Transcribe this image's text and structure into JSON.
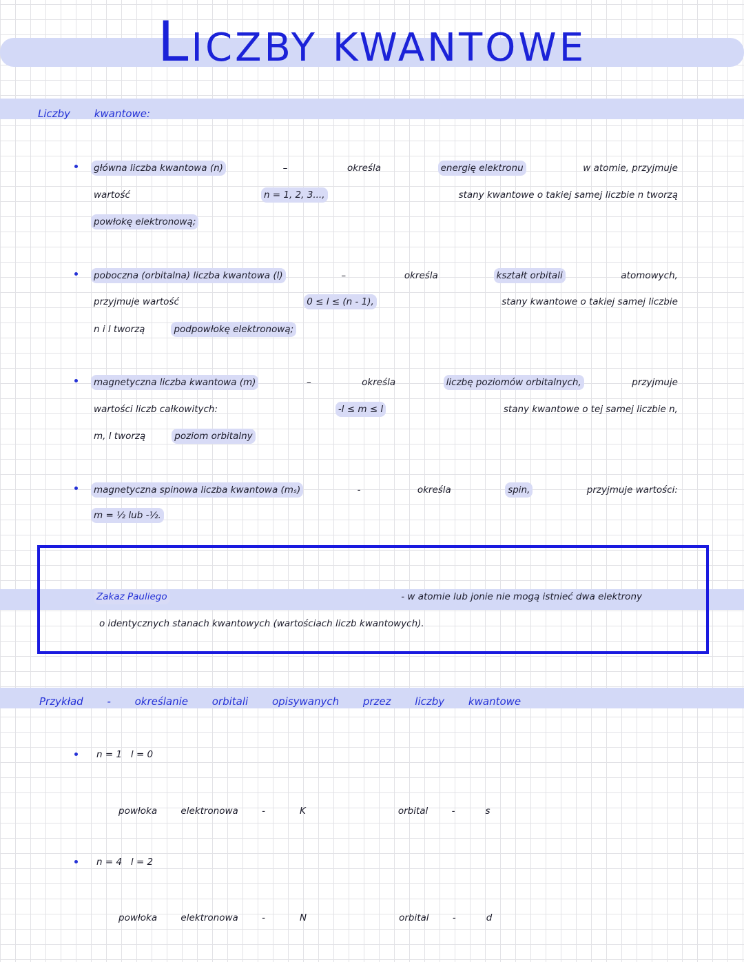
{
  "title": {
    "first_letter": "L",
    "rest": "ICZBY KWANTOWE"
  },
  "section1_heading": "Liczby kwantowe:",
  "bullets": [
    {
      "lines": [
        [
          {
            "t": "główna liczba kwantowa (n)",
            "hl": true
          },
          {
            "t": "–"
          },
          {
            "t": "określa"
          },
          {
            "t": "energię elektronu",
            "hl": true
          },
          {
            "t": "w atomie, przyjmuje"
          }
        ],
        [
          {
            "t": "wartość"
          },
          {
            "t": "n = 1, 2, 3...,",
            "hl": true
          },
          {
            "t": "stany kwantowe o takiej samej liczbie n tworzą"
          }
        ],
        [
          {
            "t": "powłokę elektronową;",
            "hl": true
          }
        ]
      ]
    },
    {
      "lines": [
        [
          {
            "t": "poboczna (orbitalna) liczba kwantowa (l)",
            "hl": true
          },
          {
            "t": "–"
          },
          {
            "t": "określa"
          },
          {
            "t": "kształt orbitali",
            "hl": true
          },
          {
            "t": "atomowych,"
          }
        ],
        [
          {
            "t": "przyjmuje wartość"
          },
          {
            "t": "0 ≤ l ≤ (n - 1),",
            "hl": true
          },
          {
            "t": "stany kwantowe o takiej samej liczbie"
          }
        ],
        [
          {
            "t": "n i l tworzą"
          },
          {
            "t": "podpowłokę elektronową;",
            "hl": true
          }
        ]
      ]
    },
    {
      "lines": [
        [
          {
            "t": "magnetyczna liczba kwantowa (m)",
            "hl": true
          },
          {
            "t": "–"
          },
          {
            "t": "określa"
          },
          {
            "t": "liczbę poziomów orbitalnych,",
            "hl": true
          },
          {
            "t": "przyjmuje"
          }
        ],
        [
          {
            "t": "wartości liczb całkowitych:"
          },
          {
            "t": "-l ≤ m ≤ l",
            "hl": true
          },
          {
            "t": "stany kwantowe o tej samej liczbie n,"
          }
        ],
        [
          {
            "t": "m, l tworzą"
          },
          {
            "t": "poziom orbitalny",
            "hl": true
          }
        ]
      ]
    },
    {
      "lines": [
        [
          {
            "t": "magnetyczna spinowa liczba kwantowa (mₛ)",
            "hl": true
          },
          {
            "t": "-"
          },
          {
            "t": "określa"
          },
          {
            "t": "spin,",
            "hl": true
          },
          {
            "t": "przyjmuje wartości:"
          }
        ],
        [
          {
            "t": "m = ½ lub -½.",
            "hl": true
          }
        ]
      ]
    }
  ],
  "pauli_box": {
    "lines": [
      [
        {
          "t": "Zakaz Pauliego",
          "hl": true,
          "blue": true
        },
        {
          "t": "- w atomie lub jonie nie mogą istnieć dwa elektrony"
        }
      ],
      [
        {
          "t": "o identycznych stanach kwantowych (wartościach liczb kwantowych)."
        }
      ]
    ]
  },
  "section2_heading": {
    "main": "Przykład",
    "rest": "- określanie orbitali opisywanych przez liczby kwantowe"
  },
  "examples": [
    {
      "quantum": "n = 1   l = 0",
      "shell_label": "powłoka elektronowa -",
      "shell": "K",
      "orbital_label": "orbital -",
      "orbital": "s"
    },
    {
      "quantum": "n = 4   l = 2",
      "shell_label": "powłoka elektronowa -",
      "shell": "N",
      "orbital_label": "orbital -",
      "orbital": "d"
    }
  ],
  "colors": {
    "accent": "#1a1adf",
    "highlight": "#d8dbf6",
    "band": "#d3d9f7"
  }
}
